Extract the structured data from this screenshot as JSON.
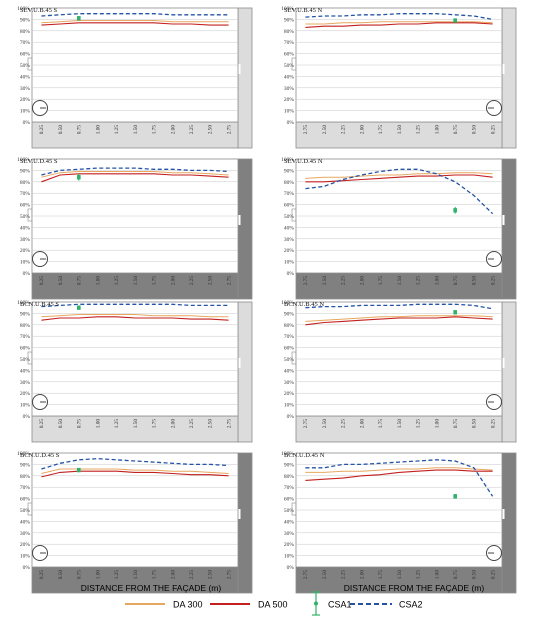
{
  "x_axis_label": "DISTANCE FROM THE FAÇADE (m)",
  "legend": {
    "placement": "bottom",
    "items": [
      {
        "label": "DA 300",
        "color": "#E7A760",
        "style": "solid"
      },
      {
        "label": "DA 500",
        "color": "#C41F1F",
        "style": "solid"
      },
      {
        "label": "CSA1",
        "color": "#2FB36B",
        "style": "marker-errorbar"
      },
      {
        "label": "CSA2",
        "color": "#2453A6",
        "style": "dashed"
      }
    ]
  },
  "colors": {
    "shade": "#DCDCDC",
    "shade_dark": "#808080",
    "frame": "#8C8C8C",
    "grid": "#C8C8C8"
  },
  "chart_data": [
    {
      "type": "line",
      "title": "SEV.U.B.45 S",
      "orientation": "S",
      "shade": "light",
      "shade_indicator": "dial",
      "x": [
        0.25,
        0.5,
        0.75,
        1.0,
        1.25,
        1.5,
        1.75,
        2.0,
        2.25,
        2.5,
        2.75
      ],
      "xticks": [
        "0.25",
        "0.50",
        "0.75",
        "1.00",
        "1.25",
        "1.50",
        "1.75",
        "2.00",
        "2.25",
        "2.50",
        "2.75"
      ],
      "yticks": [
        "0%",
        "10%",
        "20%",
        "30%",
        "40%",
        "50%",
        "60%",
        "70%",
        "80%",
        "90%",
        "100%"
      ],
      "ylim": [
        0,
        100
      ],
      "grid": true,
      "series": [
        {
          "name": "DA 300",
          "values": [
            87,
            88,
            89,
            89,
            89,
            89,
            89,
            88,
            88,
            88,
            88
          ]
        },
        {
          "name": "DA 500",
          "values": [
            85,
            86,
            87,
            87,
            87,
            87,
            87,
            86,
            86,
            85,
            85
          ]
        },
        {
          "name": "CSA2",
          "values": [
            93,
            94,
            95,
            95,
            95,
            95,
            95,
            94,
            94,
            94,
            94
          ]
        }
      ],
      "csa1": {
        "x": 0.75,
        "value": 91,
        "err": 1
      }
    },
    {
      "type": "line",
      "title": "SEV.U.B.45 N",
      "orientation": "N",
      "shade": "light",
      "shade_indicator": "dial",
      "x": [
        2.75,
        2.5,
        2.25,
        2.0,
        1.75,
        1.5,
        1.25,
        1.0,
        0.75,
        0.5,
        0.25
      ],
      "xticks": [
        "2.75",
        "2.50",
        "2.25",
        "2.00",
        "1.75",
        "1.50",
        "1.25",
        "1.00",
        "0.75",
        "0.50",
        "0.25"
      ],
      "yticks": [
        "0%",
        "10%",
        "20%",
        "30%",
        "40%",
        "50%",
        "60%",
        "70%",
        "80%",
        "90%",
        "100%"
      ],
      "ylim": [
        0,
        100
      ],
      "grid": true,
      "series": [
        {
          "name": "DA 300",
          "values": [
            86,
            86,
            87,
            87,
            88,
            88,
            88,
            88,
            88,
            88,
            87
          ]
        },
        {
          "name": "DA 500",
          "values": [
            83,
            84,
            84,
            85,
            85,
            86,
            86,
            87,
            87,
            87,
            86
          ]
        },
        {
          "name": "CSA2",
          "values": [
            92,
            93,
            93,
            94,
            94,
            95,
            95,
            95,
            94,
            93,
            90
          ]
        }
      ],
      "csa1": {
        "x": 0.75,
        "value": 89,
        "err": 1
      }
    },
    {
      "type": "line",
      "title": "SEV.U.D.45 S",
      "orientation": "S",
      "shade": "dark",
      "shade_indicator": "dial",
      "x": [
        0.25,
        0.5,
        0.75,
        1.0,
        1.25,
        1.5,
        1.75,
        2.0,
        2.25,
        2.5,
        2.75
      ],
      "xticks": [
        "0.25",
        "0.50",
        "0.75",
        "1.00",
        "1.25",
        "1.50",
        "1.75",
        "2.00",
        "2.25",
        "2.50",
        "2.75"
      ],
      "yticks": [
        "0%",
        "10%",
        "20%",
        "30%",
        "40%",
        "50%",
        "60%",
        "70%",
        "80%",
        "90%",
        "100%"
      ],
      "ylim": [
        0,
        100
      ],
      "grid": true,
      "series": [
        {
          "name": "DA 300",
          "values": [
            84,
            88,
            89,
            89,
            89,
            89,
            89,
            88,
            88,
            87,
            86
          ]
        },
        {
          "name": "DA 500",
          "values": [
            80,
            86,
            87,
            87,
            87,
            87,
            87,
            86,
            86,
            85,
            84
          ]
        },
        {
          "name": "CSA2",
          "values": [
            86,
            90,
            91,
            92,
            92,
            92,
            91,
            91,
            90,
            90,
            89
          ]
        }
      ],
      "csa1": {
        "x": 0.75,
        "value": 84,
        "err": 3
      }
    },
    {
      "type": "line",
      "title": "SEV.U.D.45 N",
      "orientation": "N",
      "shade": "dark",
      "shade_indicator": "dial",
      "x": [
        2.75,
        2.5,
        2.25,
        2.0,
        1.75,
        1.5,
        1.25,
        1.0,
        0.75,
        0.5,
        0.25
      ],
      "xticks": [
        "2.75",
        "2.50",
        "2.25",
        "2.00",
        "1.75",
        "1.50",
        "1.25",
        "1.00",
        "0.75",
        "0.50",
        "0.25"
      ],
      "yticks": [
        "0%",
        "10%",
        "20%",
        "30%",
        "40%",
        "50%",
        "60%",
        "70%",
        "80%",
        "90%",
        "100%"
      ],
      "ylim": [
        0,
        100
      ],
      "grid": true,
      "series": [
        {
          "name": "DA 300",
          "values": [
            83,
            84,
            84,
            85,
            86,
            86,
            87,
            87,
            88,
            88,
            87
          ]
        },
        {
          "name": "DA 500",
          "values": [
            80,
            80,
            81,
            82,
            83,
            84,
            85,
            85,
            86,
            86,
            84
          ]
        },
        {
          "name": "CSA2",
          "values": [
            74,
            76,
            82,
            86,
            89,
            91,
            91,
            87,
            80,
            68,
            52
          ]
        }
      ],
      "csa1": {
        "x": 0.75,
        "value": 55,
        "err": 3
      }
    },
    {
      "type": "line",
      "title": "BCN.U.B.45 S",
      "orientation": "S",
      "shade": "light",
      "shade_indicator": "dial",
      "x": [
        0.25,
        0.5,
        0.75,
        1.0,
        1.25,
        1.5,
        1.75,
        2.0,
        2.25,
        2.5,
        2.75
      ],
      "xticks": [
        "0.25",
        "0.50",
        "0.75",
        "1.00",
        "1.25",
        "1.50",
        "1.75",
        "2.00",
        "2.25",
        "2.50",
        "2.75"
      ],
      "yticks": [
        "0%",
        "10%",
        "20%",
        "30%",
        "40%",
        "50%",
        "60%",
        "70%",
        "80%",
        "90%",
        "100%"
      ],
      "ylim": [
        0,
        100
      ],
      "grid": true,
      "series": [
        {
          "name": "DA 300",
          "values": [
            87,
            88,
            89,
            89,
            89,
            89,
            88,
            88,
            88,
            87,
            87
          ]
        },
        {
          "name": "DA 500",
          "values": [
            84,
            86,
            86,
            87,
            87,
            86,
            86,
            86,
            85,
            85,
            84
          ]
        },
        {
          "name": "CSA2",
          "values": [
            96,
            97,
            98,
            98,
            98,
            98,
            98,
            98,
            97,
            97,
            97
          ]
        }
      ],
      "csa1": {
        "x": 0.75,
        "value": 95,
        "err": 1
      }
    },
    {
      "type": "line",
      "title": "BCN.U.B.45 N",
      "orientation": "N",
      "shade": "light",
      "shade_indicator": "dial",
      "x": [
        2.75,
        2.5,
        2.25,
        2.0,
        1.75,
        1.5,
        1.25,
        1.0,
        0.75,
        0.5,
        0.25
      ],
      "xticks": [
        "2.75",
        "2.50",
        "2.25",
        "2.00",
        "1.75",
        "1.50",
        "1.25",
        "1.00",
        "0.75",
        "0.50",
        "0.25"
      ],
      "yticks": [
        "0%",
        "10%",
        "20%",
        "30%",
        "40%",
        "50%",
        "60%",
        "70%",
        "80%",
        "90%",
        "100%"
      ],
      "ylim": [
        0,
        100
      ],
      "grid": true,
      "series": [
        {
          "name": "DA 300",
          "values": [
            83,
            84,
            85,
            86,
            87,
            87,
            88,
            88,
            88,
            88,
            87
          ]
        },
        {
          "name": "DA 500",
          "values": [
            80,
            82,
            83,
            84,
            85,
            86,
            86,
            86,
            87,
            86,
            85
          ]
        },
        {
          "name": "CSA2",
          "values": [
            95,
            96,
            96,
            97,
            97,
            97,
            98,
            98,
            98,
            97,
            94
          ]
        }
      ],
      "csa1": {
        "x": 0.75,
        "value": 91,
        "err": 1
      }
    },
    {
      "type": "line",
      "title": "BCN.U.D.45 S",
      "orientation": "S",
      "shade": "dark",
      "shade_indicator": "dial",
      "x": [
        0.25,
        0.5,
        0.75,
        1.0,
        1.25,
        1.5,
        1.75,
        2.0,
        2.25,
        2.5,
        2.75
      ],
      "xticks": [
        "0.25",
        "0.50",
        "0.75",
        "1.00",
        "1.25",
        "1.50",
        "1.75",
        "2.00",
        "2.25",
        "2.50",
        "2.75"
      ],
      "yticks": [
        "0%",
        "10%",
        "20%",
        "30%",
        "40%",
        "50%",
        "60%",
        "70%",
        "80%",
        "90%",
        "100%"
      ],
      "ylim": [
        0,
        100
      ],
      "grid": true,
      "series": [
        {
          "name": "DA 300",
          "values": [
            82,
            86,
            86,
            86,
            86,
            85,
            85,
            84,
            84,
            83,
            82
          ]
        },
        {
          "name": "DA 500",
          "values": [
            79,
            83,
            84,
            84,
            84,
            83,
            83,
            82,
            81,
            81,
            80
          ]
        },
        {
          "name": "CSA2",
          "values": [
            86,
            91,
            94,
            95,
            94,
            93,
            92,
            91,
            90,
            90,
            89
          ]
        }
      ],
      "csa1": {
        "x": 0.75,
        "value": 85,
        "err": 1
      }
    },
    {
      "type": "line",
      "title": "BCN.U.D.45 N",
      "orientation": "N",
      "shade": "dark",
      "shade_indicator": "dial",
      "x": [
        2.75,
        2.5,
        2.25,
        2.0,
        1.75,
        1.5,
        1.25,
        1.0,
        0.75,
        0.5,
        0.25
      ],
      "xticks": [
        "2.75",
        "2.50",
        "2.25",
        "2.00",
        "1.75",
        "1.50",
        "1.25",
        "1.00",
        "0.75",
        "0.50",
        "0.25"
      ],
      "yticks": [
        "0%",
        "10%",
        "20%",
        "30%",
        "40%",
        "50%",
        "60%",
        "70%",
        "80%",
        "90%",
        "100%"
      ],
      "ylim": [
        0,
        100
      ],
      "grid": true,
      "series": [
        {
          "name": "DA 300",
          "values": [
            83,
            83,
            84,
            84,
            85,
            86,
            86,
            87,
            87,
            86,
            85
          ]
        },
        {
          "name": "DA 500",
          "values": [
            76,
            77,
            78,
            80,
            81,
            83,
            84,
            85,
            85,
            84,
            84
          ]
        },
        {
          "name": "CSA2",
          "values": [
            87,
            87,
            90,
            90,
            91,
            92,
            93,
            94,
            93,
            87,
            62
          ]
        }
      ],
      "csa1": {
        "x": 0.75,
        "value": 62,
        "err": 2
      }
    }
  ]
}
